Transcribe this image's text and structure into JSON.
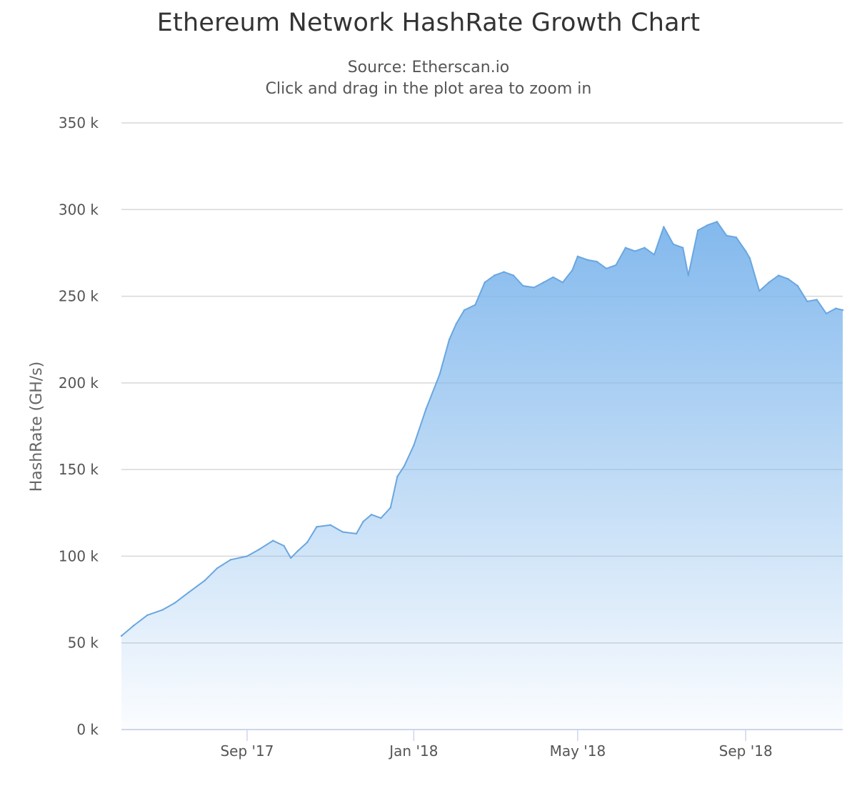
{
  "title": "Ethereum Network HashRate Growth Chart",
  "subtitle_lines": [
    "Source: Etherscan.io",
    "Click and drag in the plot area to zoom in"
  ],
  "colors": {
    "series": "#7cb5ec",
    "series_line": "#6aa6e0",
    "grid": "#d8d8d8",
    "axis": "#ccd6eb",
    "text": "#555555"
  },
  "chart_data": {
    "type": "area",
    "title": "Ethereum Network HashRate Growth Chart",
    "ylabel": "HashRate (GH/s)",
    "xlabel": "",
    "ylim": [
      0,
      350000
    ],
    "yticks": [
      0,
      50000,
      100000,
      150000,
      200000,
      250000,
      300000,
      350000
    ],
    "ytick_labels": [
      "0 k",
      "50 k",
      "100 k",
      "150 k",
      "200 k",
      "250 k",
      "300 k",
      "350 k"
    ],
    "xlim": [
      "2017-06-01",
      "2018-11-11"
    ],
    "xticks": [
      "2017-09-01",
      "2018-01-01",
      "2018-05-01",
      "2018-09-01"
    ],
    "xtick_labels": [
      "Sep '17",
      "Jan '18",
      "May '18",
      "Sep '18"
    ],
    "grid": true,
    "legend": false,
    "series": [
      {
        "x": [
          "2017-06-01",
          "2017-06-10",
          "2017-06-20",
          "2017-07-01",
          "2017-07-10",
          "2017-07-20",
          "2017-08-01",
          "2017-08-10",
          "2017-08-20",
          "2017-09-01",
          "2017-09-10",
          "2017-09-20",
          "2017-09-28",
          "2017-10-03",
          "2017-10-08",
          "2017-10-15",
          "2017-10-22",
          "2017-11-01",
          "2017-11-10",
          "2017-11-20",
          "2017-11-25",
          "2017-12-01",
          "2017-12-08",
          "2017-12-15",
          "2017-12-20",
          "2017-12-25",
          "2018-01-01",
          "2018-01-10",
          "2018-01-20",
          "2018-01-27",
          "2018-02-01",
          "2018-02-07",
          "2018-02-15",
          "2018-02-22",
          "2018-03-01",
          "2018-03-08",
          "2018-03-15",
          "2018-03-22",
          "2018-03-30",
          "2018-04-06",
          "2018-04-13",
          "2018-04-20",
          "2018-04-27",
          "2018-05-01",
          "2018-05-08",
          "2018-05-15",
          "2018-05-22",
          "2018-05-29",
          "2018-06-05",
          "2018-06-12",
          "2018-06-19",
          "2018-06-26",
          "2018-07-03",
          "2018-07-10",
          "2018-07-17",
          "2018-07-21",
          "2018-07-28",
          "2018-08-04",
          "2018-08-11",
          "2018-08-18",
          "2018-08-25",
          "2018-09-01",
          "2018-09-04",
          "2018-09-11",
          "2018-09-18",
          "2018-09-25",
          "2018-10-02",
          "2018-10-09",
          "2018-10-16",
          "2018-10-23",
          "2018-10-30",
          "2018-11-06",
          "2018-11-11"
        ],
        "values": [
          54000,
          60000,
          66000,
          69000,
          73000,
          79000,
          86000,
          93000,
          98000,
          100000,
          104000,
          109000,
          106000,
          99000,
          103000,
          108000,
          117000,
          118000,
          114000,
          113000,
          120000,
          124000,
          122000,
          128000,
          146000,
          152000,
          164000,
          185000,
          205000,
          225000,
          234000,
          242000,
          245000,
          258000,
          262000,
          264000,
          262000,
          256000,
          255000,
          258000,
          261000,
          258000,
          265000,
          273000,
          271000,
          270000,
          266000,
          268000,
          278000,
          276000,
          278000,
          274000,
          290000,
          280000,
          278000,
          262000,
          288000,
          291000,
          293000,
          285000,
          284000,
          276000,
          272000,
          253000,
          258000,
          262000,
          260000,
          256000,
          247000,
          248000,
          240000,
          243000,
          242000
        ]
      }
    ]
  }
}
